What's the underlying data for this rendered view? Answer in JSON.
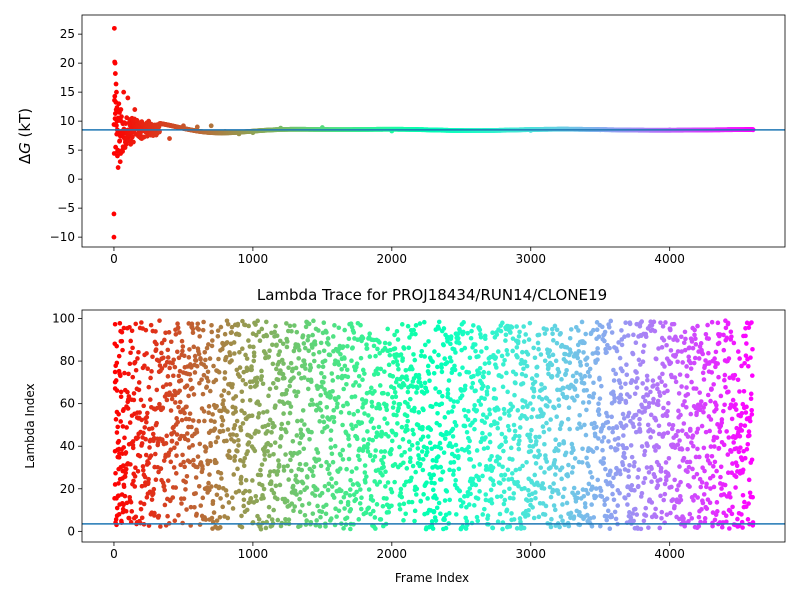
{
  "chart_data": [
    {
      "type": "scatter",
      "title": "",
      "xlabel": "",
      "ylabel": "ΔG (kT)",
      "ylabel_parts": {
        "symbol": "Δ",
        "var": "G",
        "unit": " (kT)"
      },
      "xlim": [
        -230,
        4830
      ],
      "ylim": [
        -11.7,
        28.3
      ],
      "xticks": [
        0,
        1000,
        2000,
        3000,
        4000
      ],
      "yticks": [
        -10,
        -5,
        0,
        5,
        10,
        15,
        20,
        25
      ],
      "hline": 8.5,
      "hline_color": "#1f77b4",
      "colormap": "rainbow_r",
      "n_frames": 4600,
      "convergence": {
        "final": 8.5,
        "initial_spread": 8
      },
      "series": [
        {
          "x": [
            0,
            0,
            3,
            5,
            8,
            10,
            15,
            18,
            22,
            25,
            30,
            35,
            40,
            45,
            50,
            60,
            70,
            80,
            100,
            120,
            150,
            200,
            250,
            300,
            400,
            500,
            600,
            700,
            800,
            900,
            1000,
            1200,
            1500,
            2000,
            2500,
            3000,
            3500,
            4000,
            4600
          ],
          "y": [
            -10,
            -6,
            26,
            20.2,
            20,
            18.2,
            16.4,
            15,
            10,
            4,
            2,
            13,
            11.5,
            3,
            12,
            5,
            15,
            8,
            14,
            6,
            12,
            7,
            10,
            8,
            7,
            9.2,
            9,
            9.2,
            8.2,
            7.8,
            8,
            8.8,
            8.9,
            8.3,
            8.4,
            8.4,
            8.5,
            8.5,
            8.5
          ]
        }
      ]
    },
    {
      "type": "scatter",
      "title": "Lambda Trace for PROJ18434/RUN14/CLONE19",
      "xlabel": "Frame Index",
      "ylabel": "Lambda Index",
      "xlim": [
        -230,
        4830
      ],
      "ylim": [
        -5,
        104
      ],
      "xticks": [
        0,
        1000,
        2000,
        3000,
        4000
      ],
      "yticks": [
        0,
        20,
        40,
        60,
        80,
        100
      ],
      "hline": 3.5,
      "hline_color": "#1f77b4",
      "colormap": "rainbow_r",
      "n_frames": 4600,
      "lambda_range": [
        0,
        99
      ]
    }
  ]
}
